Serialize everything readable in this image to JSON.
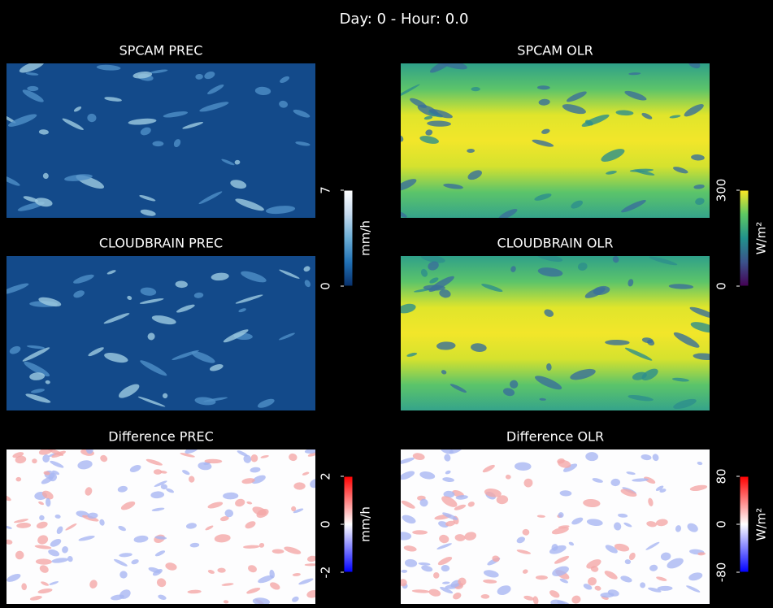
{
  "title": "Day: 0 - Hour: 0.0",
  "chart_data": [
    {
      "type": "heatmap",
      "title": "SPCAM PREC",
      "colormap": "Blues_r"
    },
    {
      "type": "heatmap",
      "title": "SPCAM OLR",
      "colormap": "viridis"
    },
    {
      "type": "heatmap",
      "title": "CLOUDBRAIN PREC",
      "colormap": "Blues_r",
      "colorbar": {
        "label": "mm/h",
        "zlim": [
          0,
          7
        ],
        "ticks": [
          0,
          7
        ]
      }
    },
    {
      "type": "heatmap",
      "title": "CLOUDBRAIN OLR",
      "colormap": "viridis",
      "colorbar": {
        "label": "W/m²",
        "zlim": [
          0,
          300
        ],
        "ticks": [
          0,
          300
        ]
      }
    },
    {
      "type": "heatmap",
      "title": "Difference PREC",
      "colormap": "bwr",
      "colorbar": {
        "label": "mm/h",
        "zlim": [
          -2,
          2
        ],
        "ticks": [
          -2,
          0,
          2
        ]
      }
    },
    {
      "type": "heatmap",
      "title": "Difference OLR",
      "colormap": "bwr",
      "colorbar": {
        "label": "W/m²",
        "zlim": [
          -80,
          80
        ],
        "ticks": [
          -80,
          0,
          80
        ]
      }
    }
  ]
}
